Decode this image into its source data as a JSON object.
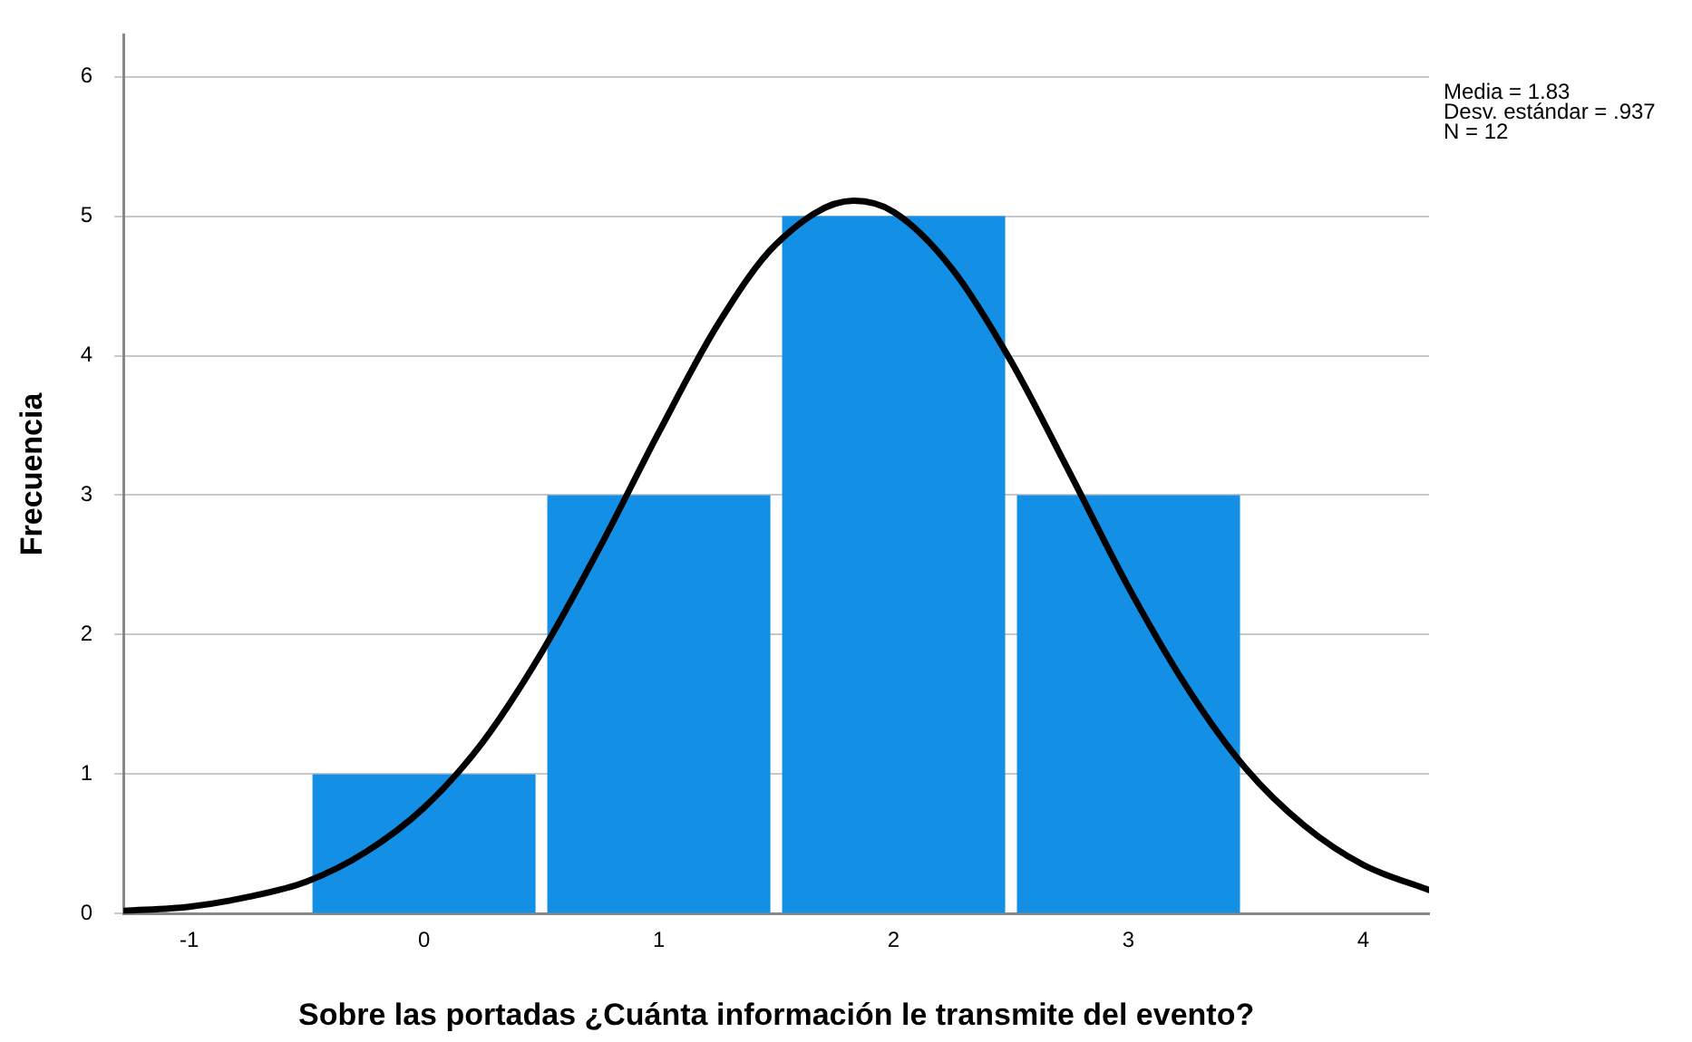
{
  "chart_data": {
    "type": "histogram",
    "xlabel": "Sobre las portadas ¿Cuánta información le transmite del evento?",
    "ylabel": "Frecuencia",
    "bins": [
      -0.5,
      0.5,
      1.5,
      2.5,
      3.5
    ],
    "values": [
      1,
      3,
      5,
      3
    ],
    "color": "#1390e6",
    "series": [
      {
        "type": "line",
        "color": "#000000",
        "marker": "none",
        "x": [
          -1.28,
          -1,
          -0.75,
          -0.5,
          -0.25,
          0,
          0.25,
          0.5,
          0.75,
          1,
          1.25,
          1.5,
          1.83,
          2,
          2.25,
          2.5,
          2.75,
          3,
          3.25,
          3.5,
          3.75,
          4,
          4.28
        ],
        "values": [
          0.02,
          0.05,
          0.12,
          0.23,
          0.44,
          0.76,
          1.23,
          1.87,
          2.63,
          3.45,
          4.22,
          4.8,
          5.11,
          5.03,
          4.62,
          3.96,
          3.16,
          2.34,
          1.62,
          1.04,
          0.63,
          0.35,
          0.17
        ]
      }
    ],
    "xlim": [
      -1.28,
      4.28
    ],
    "xticks": [
      -1,
      0,
      1,
      2,
      3,
      4
    ],
    "ylim": [
      0,
      6.3
    ],
    "yticks": [
      0,
      1,
      2,
      3,
      4,
      5,
      6
    ],
    "grid": "y",
    "legend": false,
    "annotations": [
      "Media = 1.83",
      "Desv. estándar = .937",
      "N = 12"
    ]
  }
}
